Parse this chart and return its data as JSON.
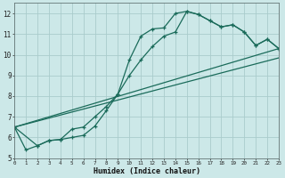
{
  "xlabel": "Humidex (Indice chaleur)",
  "bg_color": "#cce8e8",
  "grid_color": "#aacccc",
  "line_color": "#1a6b5a",
  "xmin": 0,
  "xmax": 23,
  "ymin": 5,
  "ymax": 12.5,
  "yticks": [
    5,
    6,
    7,
    8,
    9,
    10,
    11,
    12
  ],
  "xtick_labels": [
    "0",
    "1",
    "2",
    "3",
    "4",
    "5",
    "6",
    "7",
    "8",
    "9",
    "10",
    "11",
    "12",
    "13",
    "14",
    "15",
    "16",
    "17",
    "18",
    "19",
    "20",
    "21",
    "22",
    "23"
  ],
  "line1_x": [
    0,
    1,
    2,
    3,
    4,
    5,
    6,
    7,
    8,
    9,
    10,
    11,
    12,
    13,
    14,
    15,
    16,
    17,
    18,
    19,
    20,
    21,
    22,
    23
  ],
  "line1_y": [
    6.5,
    5.4,
    5.6,
    5.85,
    5.9,
    6.0,
    6.1,
    6.55,
    7.3,
    8.1,
    9.0,
    9.75,
    10.4,
    10.9,
    11.1,
    12.1,
    11.95,
    11.65,
    11.35,
    11.45,
    11.1,
    10.45,
    10.75,
    10.3
  ],
  "line2_x": [
    0,
    2,
    3,
    4,
    5,
    6,
    7,
    8,
    9,
    10,
    11,
    12,
    13,
    14,
    15,
    16,
    17,
    18,
    19,
    20,
    21,
    22,
    23
  ],
  "line2_y": [
    6.5,
    5.6,
    5.85,
    5.9,
    6.4,
    6.5,
    7.0,
    7.5,
    8.1,
    9.75,
    10.9,
    11.25,
    11.3,
    12.0,
    12.1,
    11.95,
    11.65,
    11.35,
    11.45,
    11.1,
    10.45,
    10.75,
    10.3
  ],
  "line3_x": [
    0,
    23
  ],
  "line3_y": [
    6.5,
    10.3
  ],
  "line4_x": [
    0,
    23
  ],
  "line4_y": [
    6.5,
    9.85
  ]
}
